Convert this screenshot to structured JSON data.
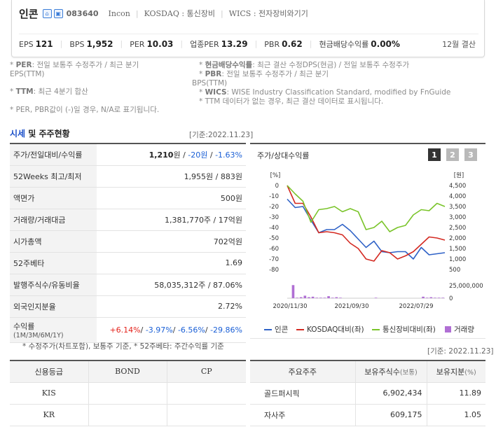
{
  "header": {
    "name": "인콘",
    "code": "083640",
    "eng_name": "Incon",
    "market": "KOSDAQ : 통신장비",
    "wics": "WICS : 전자장비와기기",
    "metrics": [
      {
        "label": "EPS",
        "value": "121"
      },
      {
        "label": "BPS",
        "value": "1,952"
      },
      {
        "label": "PER",
        "value": "10.03"
      },
      {
        "label": "업종PER",
        "value": "13.29"
      },
      {
        "label": "PBR",
        "value": "0.62"
      },
      {
        "label": "현금배당수익률",
        "value": "0.00%"
      }
    ],
    "fiscal": "12월 결산"
  },
  "notes": {
    "l1": "* PER: 전일 보통주 수정주가 / 최근 분기",
    "l1_key": "PER",
    "l1_rest": ": 전일 보통주 수정주가 / 최근 분기",
    "l2": "EPS(TTM)",
    "l3_key": "TTM",
    "l3_rest": ": 최근 4분기 합산",
    "l4": "* PER, PBR값이 (-)일 경우, N/A로 표기됩니다.",
    "r1_key": "현금배당수익률",
    "r1_rest": ": 최근 결산 수정DPS(현금) / 전일 보통주 수정주가",
    "r2_key": "PBR",
    "r2_rest": ": 전일 보통주 수정주가 / 최근 분기",
    "r3": "BPS(TTM)",
    "r4_key": "WICS",
    "r4_rest": ": WISE Industry Classification Standard, modified by FnGuide",
    "r5": "* TTM 데이터가 없는 경우, 최근 결산 데이터로 표시됩니다."
  },
  "price_section": {
    "title_blue": "시세",
    "title_rest": " 및 주주현황",
    "basis": "[기준:2022.11.23]",
    "rows": [
      {
        "label": "주가/전일대비/수익률",
        "price": "1,210",
        "unit": "원 / ",
        "change": "-20원",
        "sep": " / ",
        "rate": "-1.63%"
      },
      {
        "label": "52Weeks 최고/최저",
        "value": "1,955원 / 883원"
      },
      {
        "label": "액면가",
        "value": "500원"
      },
      {
        "label": "거래량/거래대금",
        "value": "1,381,770주 / 17억원"
      },
      {
        "label": "시가총액",
        "value": "702억원"
      },
      {
        "label": "52주베타",
        "value": "1.69"
      },
      {
        "label": "발행주식수/유동비율",
        "value": "58,035,312주 / 87.06%"
      },
      {
        "label": "외국인지분율",
        "value": "2.72%"
      }
    ],
    "returns_label": "수익률",
    "returns_sub": "(1M/3M/6M/1Y)",
    "returns": [
      "+6.14%",
      "-3.97%",
      "-6.56%",
      "-29.86%"
    ],
    "footnote": "* 수정주가(차트포함), 보통주 기준, * 52주베타: 주간수익률 기준"
  },
  "chart_panel": {
    "title": "주가/상대수익률",
    "pages": [
      "1",
      "2",
      "3"
    ],
    "active_page": "1"
  },
  "chart_data": {
    "type": "line",
    "y_left_label": "[%]",
    "y_right_label": "[원]",
    "y_left_ticks": [
      "0",
      "-10",
      "-20",
      "-30",
      "-40",
      "-50",
      "-60",
      "-70",
      "-80"
    ],
    "y_right_ticks": [
      "4,500",
      "4,000",
      "3,500",
      "3,000",
      "2,500",
      "2,000",
      "1,500",
      "1,000",
      "500"
    ],
    "volume_ticks": [
      "25,000,000",
      "0"
    ],
    "x_ticks": [
      "2020/11/30",
      "2021/09/30",
      "2022/07/29"
    ],
    "ylim_left": [
      -80,
      0
    ],
    "series": [
      {
        "name": "인콘",
        "color": "#2f62c7",
        "values": [
          -13,
          -21,
          -20,
          -33,
          -45,
          -42,
          -42,
          -37,
          -43,
          -51,
          -59,
          -53,
          -63,
          -64,
          -63,
          -63,
          -70,
          -59,
          -66,
          -65,
          -64
        ]
      },
      {
        "name": "KOSDAQ대비(좌)",
        "color": "#d42a22",
        "values": [
          0,
          -17,
          -17,
          -30,
          -45,
          -44,
          -45,
          -47,
          -55,
          -60,
          -70,
          -72,
          -62,
          -64,
          -70,
          -67,
          -63,
          -56,
          -49,
          -50,
          -52
        ]
      },
      {
        "name": "통신장비대비(좌)",
        "color": "#7ac42a",
        "values": [
          0,
          -8,
          -15,
          -35,
          -23,
          -22,
          -20,
          -25,
          -22,
          -25,
          -42,
          -40,
          -34,
          -44,
          -40,
          -38,
          -28,
          -23,
          -24,
          -17,
          -20
        ]
      }
    ],
    "volume": {
      "name": "거래량(우)",
      "color": "#b06fd4",
      "values": [
        0,
        2.6,
        0.1,
        0.2,
        0.5,
        0.2,
        0.3,
        0.1,
        0.1,
        0.1,
        0.4,
        0.1,
        0.2,
        0.1,
        0,
        0,
        0,
        0,
        0,
        0,
        0,
        0,
        0.1,
        0,
        0,
        0,
        0,
        0,
        0,
        0,
        0,
        0,
        0,
        0,
        0.3,
        0.1,
        0.2,
        0.1,
        0.1,
        0.1
      ],
      "unit": "x10,000,000"
    }
  },
  "legend": [
    "인콘",
    "KOSDAQ대비(좌)",
    "통신장비대비(좌)",
    "거래량"
  ],
  "right_basis": "[기준: 2022.11.23]",
  "credit": {
    "headers": [
      "신용등급",
      "BOND",
      "CP"
    ],
    "rows": [
      [
        "KIS",
        "",
        ""
      ],
      [
        "KR",
        "",
        ""
      ]
    ]
  },
  "holders": {
    "headers": [
      "주요주주",
      "보유주식수",
      "(보통)",
      "보유지분",
      "(%)"
    ],
    "rows": [
      {
        "name": "골드퍼시픽",
        "shares": "6,902,434",
        "pct": "11.89"
      },
      {
        "name": "자사주",
        "shares": "609,175",
        "pct": "1.05"
      }
    ]
  }
}
